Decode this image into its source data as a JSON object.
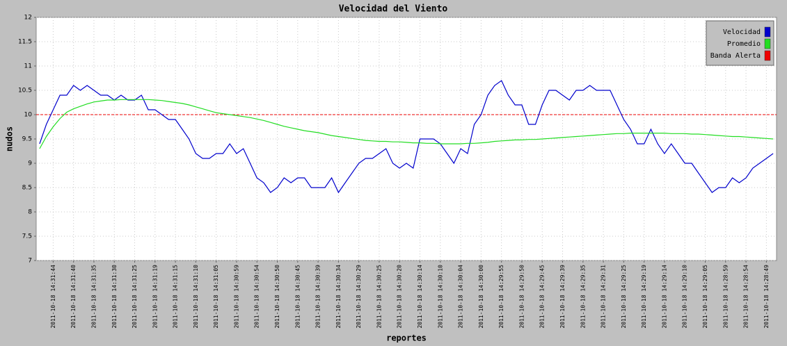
{
  "chart_data": {
    "type": "line",
    "title": "Velocidad del Viento",
    "x_label": "reportes",
    "y_label": "nudos",
    "categories": [
      null,
      null,
      "2011-10-18 14:31:44",
      null,
      null,
      "2011-10-18 14:31:40",
      null,
      null,
      "2011-10-18 14:31:35",
      null,
      null,
      "2011-10-18 14:31:30",
      null,
      null,
      "2011-10-18 14:31:25",
      null,
      null,
      "2011-10-18 14:31:19",
      null,
      null,
      "2011-10-18 14:31:15",
      null,
      null,
      "2011-10-18 14:31:10",
      null,
      null,
      "2011-10-18 14:31:05",
      null,
      null,
      "2011-10-18 14:30:59",
      null,
      null,
      "2011-10-18 14:30:54",
      null,
      null,
      "2011-10-18 14:30:50",
      null,
      null,
      "2011-10-18 14:30:45",
      null,
      null,
      "2011-10-18 14:30:39",
      null,
      null,
      "2011-10-18 14:30:34",
      null,
      null,
      "2011-10-18 14:30:29",
      null,
      null,
      "2011-10-18 14:30:25",
      null,
      null,
      "2011-10-18 14:30:20",
      null,
      null,
      "2011-10-18 14:30:14",
      null,
      null,
      "2011-10-18 14:30:10",
      null,
      null,
      "2011-10-18 14:30:04",
      null,
      null,
      "2011-10-18 14:30:00",
      null,
      null,
      "2011-10-18 14:29:55",
      null,
      null,
      "2011-10-18 14:29:50",
      null,
      null,
      "2011-10-18 14:29:45",
      null,
      null,
      "2011-10-18 14:29:39",
      null,
      null,
      "2011-10-18 14:29:35",
      null,
      null,
      "2011-10-18 14:29:31",
      null,
      null,
      "2011-10-18 14:29:25",
      null,
      null,
      "2011-10-18 14:29:19",
      null,
      null,
      "2011-10-18 14:29:14",
      null,
      null,
      "2011-10-18 14:29:10",
      null,
      null,
      "2011-10-18 14:29:05",
      null,
      null,
      "2011-10-18 14:28:59",
      null,
      null,
      "2011-10-18 14:28:54",
      null,
      null,
      "2011-10-18 14:28:49",
      null
    ],
    "series": [
      {
        "name": "Velocidad",
        "color": "#0000cc",
        "values": [
          9.4,
          9.8,
          10.1,
          10.4,
          10.4,
          10.6,
          10.5,
          10.6,
          10.5,
          10.4,
          10.4,
          10.3,
          10.4,
          10.3,
          10.3,
          10.4,
          10.1,
          10.1,
          10.0,
          9.9,
          9.9,
          9.7,
          9.5,
          9.2,
          9.1,
          9.1,
          9.2,
          9.2,
          9.4,
          9.2,
          9.3,
          9.0,
          8.7,
          8.6,
          8.4,
          8.5,
          8.7,
          8.6,
          8.7,
          8.7,
          8.5,
          8.5,
          8.5,
          8.7,
          8.4,
          8.6,
          8.8,
          9.0,
          9.1,
          9.1,
          9.2,
          9.3,
          9.0,
          8.9,
          9.0,
          8.9,
          9.5,
          9.5,
          9.5,
          9.4,
          9.2,
          9.0,
          9.3,
          9.2,
          9.8,
          10.0,
          10.4,
          10.6,
          10.7,
          10.4,
          10.2,
          10.2,
          9.8,
          9.8,
          10.2,
          10.5,
          10.5,
          10.4,
          10.3,
          10.5,
          10.5,
          10.6,
          10.5,
          10.5,
          10.5,
          10.2,
          9.9,
          9.7,
          9.4,
          9.4,
          9.7,
          9.4,
          9.2,
          9.4,
          9.2,
          9.0,
          9.0,
          8.8,
          8.6,
          8.4,
          8.5,
          8.5,
          8.7,
          8.6,
          8.7,
          8.9,
          9.0,
          9.1,
          9.2
        ]
      },
      {
        "name": "Promedio",
        "color": "#22dd22",
        "values": [
          9.3,
          9.55,
          9.75,
          9.92,
          10.05,
          10.12,
          10.17,
          10.22,
          10.26,
          10.28,
          10.3,
          10.3,
          10.31,
          10.31,
          10.31,
          10.31,
          10.31,
          10.3,
          10.29,
          10.27,
          10.25,
          10.23,
          10.2,
          10.16,
          10.12,
          10.08,
          10.04,
          10.02,
          10.0,
          9.98,
          9.96,
          9.94,
          9.91,
          9.88,
          9.84,
          9.8,
          9.76,
          9.73,
          9.7,
          9.67,
          9.65,
          9.63,
          9.6,
          9.57,
          9.55,
          9.53,
          9.51,
          9.49,
          9.47,
          9.46,
          9.45,
          9.45,
          9.44,
          9.44,
          9.43,
          9.42,
          9.42,
          9.41,
          9.41,
          9.4,
          9.4,
          9.4,
          9.4,
          9.41,
          9.41,
          9.42,
          9.43,
          9.45,
          9.46,
          9.47,
          9.48,
          9.48,
          9.49,
          9.49,
          9.5,
          9.51,
          9.52,
          9.53,
          9.54,
          9.55,
          9.56,
          9.57,
          9.58,
          9.59,
          9.6,
          9.61,
          9.61,
          9.62,
          9.62,
          9.62,
          9.62,
          9.62,
          9.62,
          9.61,
          9.61,
          9.61,
          9.6,
          9.6,
          9.59,
          9.58,
          9.57,
          9.56,
          9.55,
          9.55,
          9.54,
          9.53,
          9.52,
          9.51,
          9.5
        ]
      }
    ],
    "threshold": {
      "name": "Banda Alerta",
      "color": "#ee0000",
      "value": 10
    },
    "ylim": [
      7,
      12
    ],
    "yticks": [
      7,
      7.5,
      8,
      8.5,
      9,
      9.5,
      10,
      10.5,
      11,
      11.5,
      12
    ],
    "grid": true
  }
}
